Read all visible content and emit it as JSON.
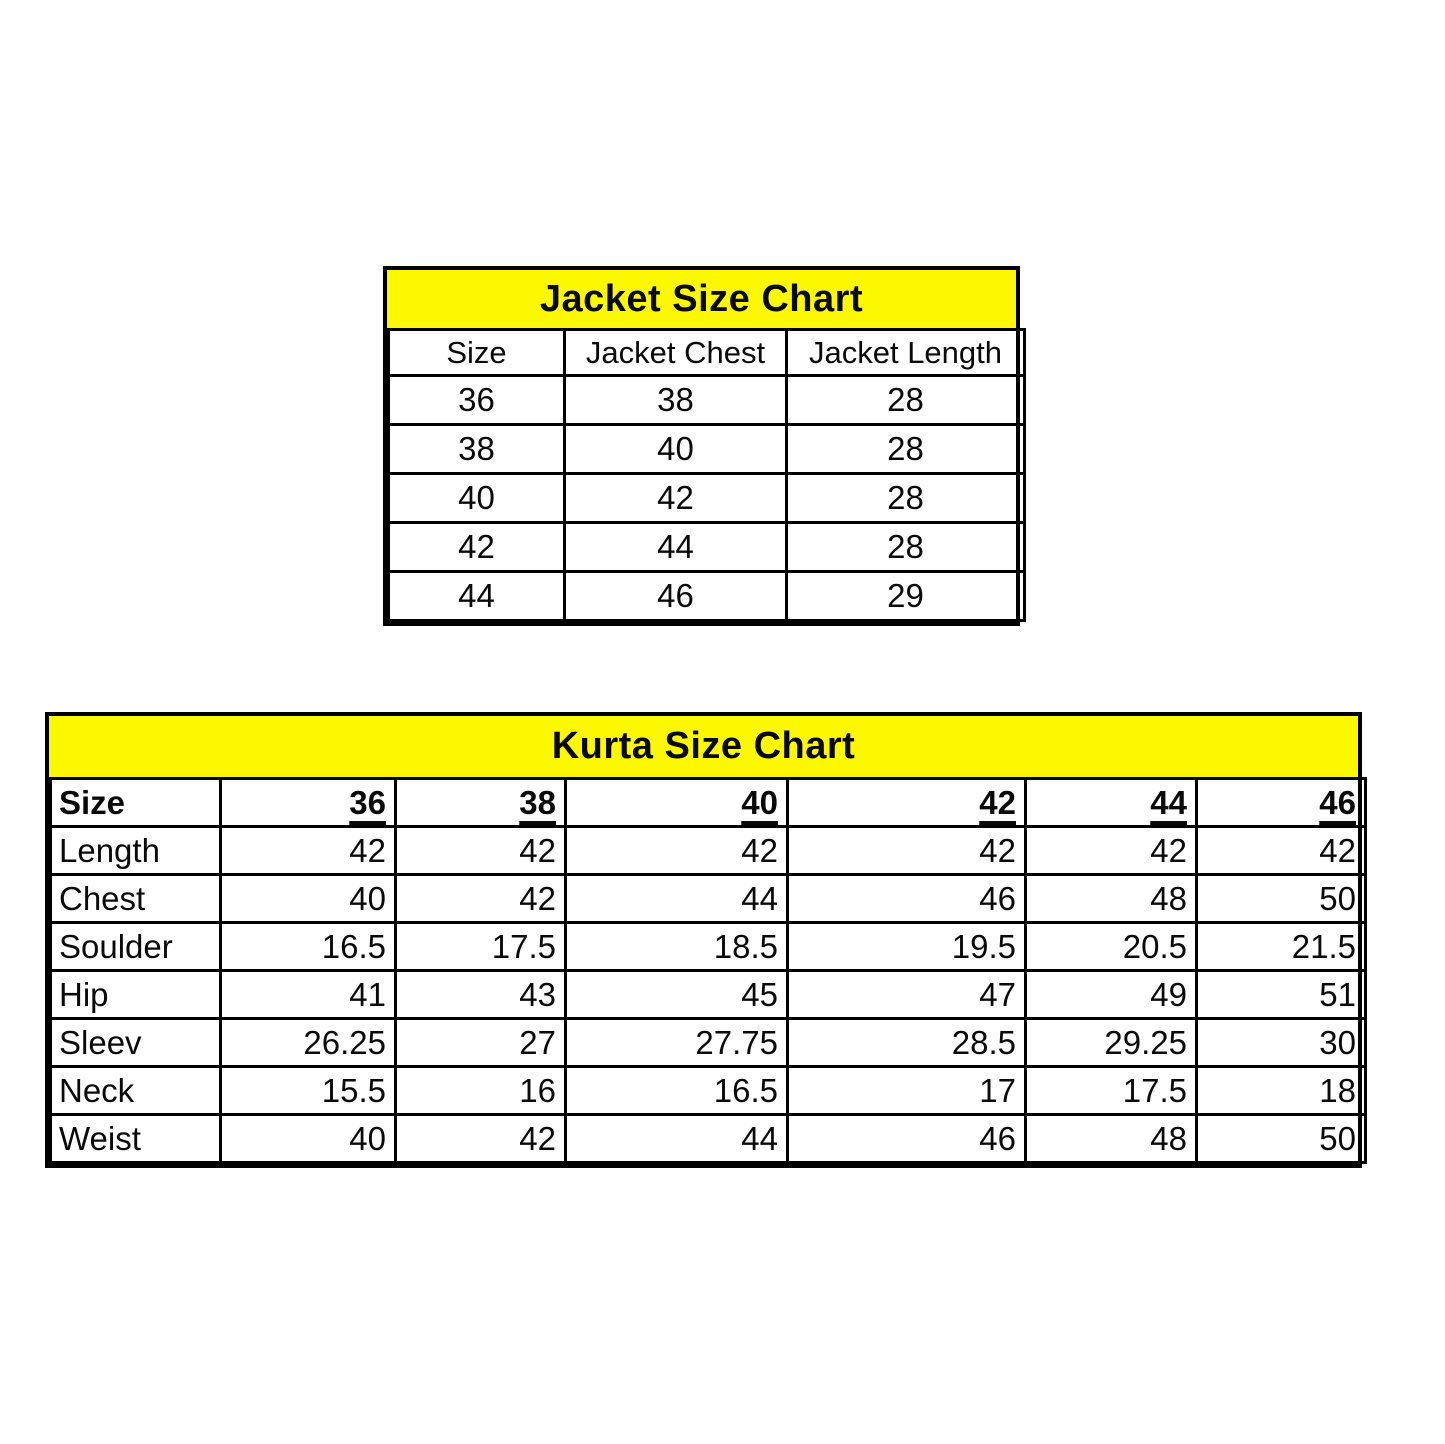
{
  "colors": {
    "title_background": "#fcf802",
    "border": "#000000",
    "text": "#0a0a0a",
    "page_background": "#ffffff"
  },
  "jacket_chart": {
    "title": "Jacket Size Chart",
    "columns": [
      "Size",
      "Jacket Chest",
      "Jacket Length"
    ],
    "rows": [
      [
        "36",
        "38",
        "28"
      ],
      [
        "38",
        "40",
        "28"
      ],
      [
        "40",
        "42",
        "28"
      ],
      [
        "42",
        "44",
        "28"
      ],
      [
        "44",
        "46",
        "29"
      ]
    ]
  },
  "kurta_chart": {
    "title": "Kurta Size Chart",
    "size_row_label": "Size",
    "sizes": [
      "36",
      "38",
      "40",
      "42",
      "44",
      "46"
    ],
    "rows": [
      {
        "label": "Length",
        "values": [
          "42",
          "42",
          "42",
          "42",
          "42",
          "42"
        ]
      },
      {
        "label": "Chest",
        "values": [
          "40",
          "42",
          "44",
          "46",
          "48",
          "50"
        ]
      },
      {
        "label": "Soulder",
        "values": [
          "16.5",
          "17.5",
          "18.5",
          "19.5",
          "20.5",
          "21.5"
        ]
      },
      {
        "label": "Hip",
        "values": [
          "41",
          "43",
          "45",
          "47",
          "49",
          "51"
        ]
      },
      {
        "label": "Sleev",
        "values": [
          "26.25",
          "27",
          "27.75",
          "28.5",
          "29.25",
          "30"
        ]
      },
      {
        "label": "Neck",
        "values": [
          "15.5",
          "16",
          "16.5",
          "17",
          "17.5",
          "18"
        ]
      },
      {
        "label": "Weist",
        "values": [
          "40",
          "42",
          "44",
          "46",
          "48",
          "50"
        ]
      }
    ]
  }
}
